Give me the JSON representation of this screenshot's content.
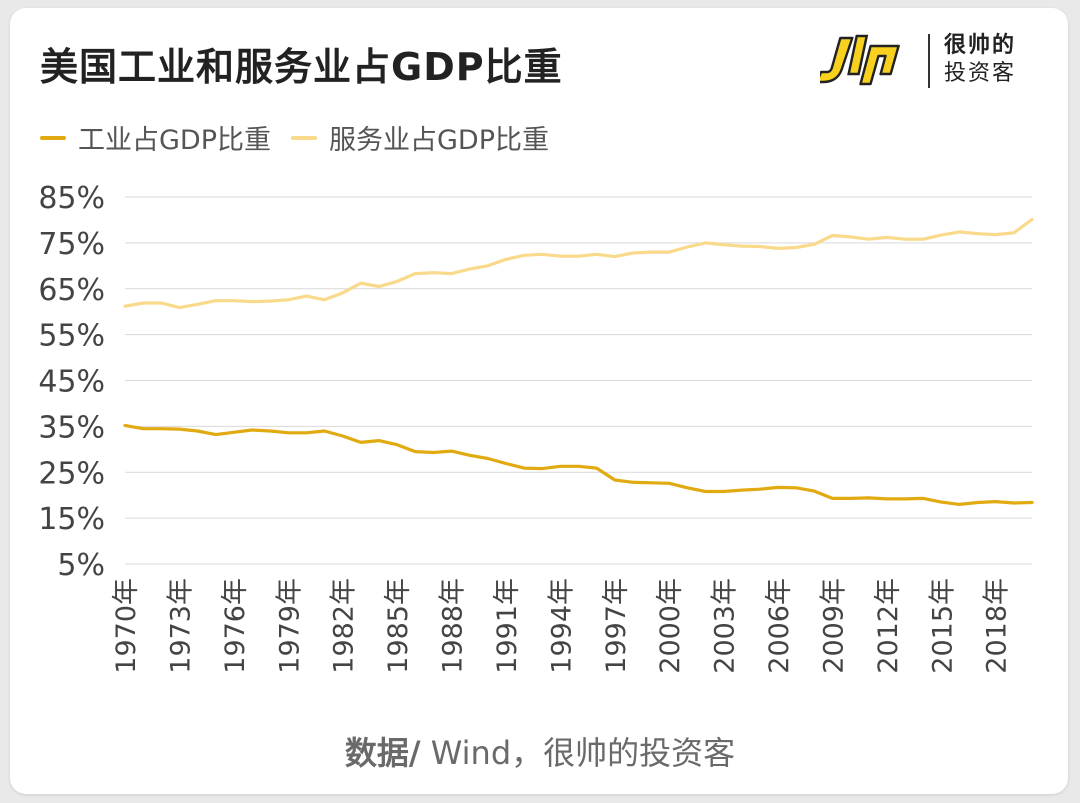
{
  "header": {
    "title": "美国工业和服务业占GDP比重",
    "logo_line1": "很帅的",
    "logo_line2": "投资客"
  },
  "source": {
    "label": "数据/",
    "text": " Wind，很帅的投资客"
  },
  "colors": {
    "industry": "#E0AA10",
    "services": "#F9D98A",
    "grid": "#d9d9d9",
    "axis_text": "#444444",
    "logo_yellow": "#F7D11E"
  },
  "chart_data": {
    "type": "line",
    "title": "美国工业和服务业占GDP比重",
    "xlabel": "",
    "ylabel": "",
    "ylim": [
      5,
      85
    ],
    "yticks": [
      85,
      75,
      65,
      55,
      45,
      35,
      25,
      15,
      5
    ],
    "ytick_suffix": "%",
    "grid": true,
    "legend_position": "top-left",
    "x": [
      "1970年",
      "1971年",
      "1972年",
      "1973年",
      "1974年",
      "1975年",
      "1976年",
      "1977年",
      "1978年",
      "1979年",
      "1980年",
      "1981年",
      "1982年",
      "1983年",
      "1984年",
      "1985年",
      "1986年",
      "1987年",
      "1988年",
      "1989年",
      "1990年",
      "1991年",
      "1992年",
      "1993年",
      "1994年",
      "1995年",
      "1996年",
      "1997年",
      "1998年",
      "1999年",
      "2000年",
      "2001年",
      "2002年",
      "2003年",
      "2004年",
      "2005年",
      "2006年",
      "2007年",
      "2008年",
      "2009年",
      "2010年",
      "2011年",
      "2012年",
      "2013年",
      "2014年",
      "2015年",
      "2016年",
      "2017年",
      "2018年",
      "2019年",
      "2020年"
    ],
    "x_tick_labels": [
      "1970年",
      "1973年",
      "1976年",
      "1979年",
      "1982年",
      "1985年",
      "1988年",
      "1991年",
      "1994年",
      "1997年",
      "2000年",
      "2003年",
      "2006年",
      "2009年",
      "2012年",
      "2015年",
      "2018年"
    ],
    "series": [
      {
        "name": "工业占GDP比重",
        "color": "#E0AA10",
        "values": [
          35.2,
          34.5,
          34.5,
          34.4,
          34.0,
          33.2,
          33.7,
          34.2,
          34.0,
          33.6,
          33.6,
          34.0,
          32.9,
          31.5,
          31.9,
          31.0,
          29.5,
          29.3,
          29.6,
          28.7,
          28.0,
          26.9,
          25.9,
          25.8,
          26.3,
          26.3,
          25.9,
          23.3,
          22.8,
          22.7,
          22.6,
          21.6,
          20.8,
          20.8,
          21.1,
          21.3,
          21.7,
          21.6,
          20.9,
          19.3,
          19.3,
          19.4,
          19.2,
          19.2,
          19.3,
          18.5,
          18.0,
          18.4,
          18.6,
          18.3,
          18.4
        ]
      },
      {
        "name": "服务业占GDP比重",
        "color": "#F9D98A",
        "values": [
          61.2,
          61.9,
          61.9,
          60.9,
          61.6,
          62.4,
          62.4,
          62.2,
          62.3,
          62.6,
          63.4,
          62.6,
          64.1,
          66.2,
          65.5,
          66.6,
          68.3,
          68.5,
          68.3,
          69.3,
          70.0,
          71.4,
          72.3,
          72.5,
          72.1,
          72.1,
          72.5,
          72.0,
          72.8,
          73.0,
          73.0,
          74.1,
          75.0,
          74.6,
          74.3,
          74.2,
          73.8,
          74.0,
          74.7,
          76.6,
          76.3,
          75.8,
          76.2,
          75.8,
          75.8,
          76.7,
          77.4,
          77.0,
          76.8,
          77.2,
          80.1
        ]
      }
    ]
  }
}
